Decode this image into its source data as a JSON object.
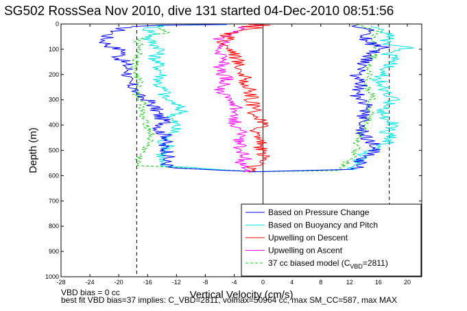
{
  "chart_data": {
    "type": "line",
    "title": "SG502 RossSea Nov 2010, dive 131 started 04-Dec-2010 08:51:56",
    "xlabel": "Vertical Velocity (cm/s)",
    "ylabel": "Depth (m)",
    "xlim": [
      -28,
      22
    ],
    "ylim": [
      0,
      1000
    ],
    "y_reversed": true,
    "x_ticks": [
      -28,
      -24,
      -20,
      -16,
      -12,
      -8,
      -4,
      0,
      4,
      8,
      12,
      16,
      20
    ],
    "y_ticks": [
      0,
      100,
      200,
      300,
      400,
      500,
      600,
      700,
      800,
      900,
      1000
    ],
    "x_tick_labels": [
      "-28",
      "-24",
      "-20",
      "-16",
      "-12",
      "-8",
      "-4",
      "0",
      "4",
      "8",
      "12",
      "16",
      "20"
    ],
    "y_tick_labels": [
      "0",
      "100",
      "200",
      "300",
      "400",
      "500",
      "600",
      "700",
      "800",
      "900",
      "1000"
    ],
    "grid": false,
    "legend_position": "bottom-right",
    "reference_lines": {
      "zero_line": 0,
      "model_bounds": [
        -17.5,
        17.5
      ]
    },
    "series": [
      {
        "name": "Based on Pressure Change",
        "color": "#0000ff",
        "style": "solid",
        "descent": [
          [
            -5,
            2
          ],
          [
            -14,
            5
          ],
          [
            -19,
            10
          ],
          [
            -20,
            25
          ],
          [
            -21.5,
            45
          ],
          [
            -22,
            70
          ],
          [
            -21,
            90
          ],
          [
            -19,
            110
          ],
          [
            -20,
            130
          ],
          [
            -19,
            160
          ],
          [
            -18.5,
            190
          ],
          [
            -19,
            220
          ],
          [
            -18,
            250
          ],
          [
            -17.5,
            270
          ],
          [
            -17.6,
            280
          ],
          [
            -16,
            300
          ],
          [
            -15,
            330
          ],
          [
            -14.5,
            360
          ],
          [
            -13.5,
            390
          ],
          [
            -14.5,
            420
          ],
          [
            -13,
            450
          ],
          [
            -14,
            480
          ],
          [
            -13,
            510
          ],
          [
            -13.5,
            540
          ],
          [
            -13,
            570
          ],
          [
            -2,
            583
          ]
        ],
        "ascent": [
          [
            -2,
            585
          ],
          [
            13,
            575
          ],
          [
            13.5,
            540
          ],
          [
            16,
            490
          ],
          [
            15,
            470
          ],
          [
            14,
            440
          ],
          [
            13.5,
            400
          ],
          [
            14,
            360
          ],
          [
            14.5,
            320
          ],
          [
            13,
            280
          ],
          [
            13.5,
            240
          ],
          [
            13,
            200
          ],
          [
            14,
            160
          ],
          [
            15,
            120
          ],
          [
            16,
            100
          ],
          [
            17.5,
            95
          ],
          [
            15,
            80
          ],
          [
            14,
            50
          ],
          [
            14.5,
            20
          ],
          [
            13,
            5
          ]
        ]
      },
      {
        "name": "Based on Buoyancy and Pitch",
        "color": "#00e5e5",
        "style": "solid",
        "descent": [
          [
            -5,
            2
          ],
          [
            -14,
            5
          ],
          [
            -16,
            20
          ],
          [
            -15,
            40
          ],
          [
            -16,
            60
          ],
          [
            -15,
            80
          ],
          [
            -14,
            100
          ],
          [
            -15,
            130
          ],
          [
            -14.5,
            160
          ],
          [
            -14,
            200
          ],
          [
            -14.5,
            240
          ],
          [
            -13.5,
            270
          ],
          [
            -14,
            290
          ],
          [
            -13,
            300
          ],
          [
            -12,
            320
          ],
          [
            -11,
            350
          ],
          [
            -13,
            370
          ],
          [
            -12,
            400
          ],
          [
            -12.5,
            430
          ],
          [
            -14,
            460
          ],
          [
            -13,
            490
          ],
          [
            -14,
            520
          ],
          [
            -14.5,
            560
          ],
          [
            -2,
            583
          ]
        ],
        "ascent": [
          [
            -2,
            585
          ],
          [
            12.5,
            575
          ],
          [
            13,
            550
          ],
          [
            14.5,
            500
          ],
          [
            16,
            480
          ],
          [
            18,
            460
          ],
          [
            17,
            430
          ],
          [
            18,
            400
          ],
          [
            16.5,
            360
          ],
          [
            17,
            330
          ],
          [
            18,
            300
          ],
          [
            17,
            260
          ],
          [
            16,
            220
          ],
          [
            17,
            180
          ],
          [
            18,
            150
          ],
          [
            17.5,
            120
          ],
          [
            20,
            95
          ],
          [
            17,
            80
          ],
          [
            17.5,
            50
          ],
          [
            16,
            20
          ],
          [
            15,
            5
          ]
        ]
      },
      {
        "name": "Upwelling on Descent",
        "color": "#ff0000",
        "style": "solid",
        "points": [
          [
            -2,
            2
          ],
          [
            1,
            5
          ],
          [
            -3,
            10
          ],
          [
            0,
            15
          ],
          [
            -2,
            20
          ],
          [
            -4,
            30
          ],
          [
            -5,
            45
          ],
          [
            -4,
            60
          ],
          [
            -6,
            70
          ],
          [
            -5,
            90
          ],
          [
            -4,
            110
          ],
          [
            -3,
            180
          ],
          [
            -2,
            260
          ],
          [
            -1.5,
            320
          ],
          [
            -1,
            360
          ],
          [
            0,
            400
          ],
          [
            -1,
            430
          ],
          [
            0,
            470
          ],
          [
            -0.5,
            500
          ],
          [
            0.5,
            530
          ],
          [
            -1,
            560
          ],
          [
            -2,
            585
          ]
        ]
      },
      {
        "name": "Upwelling on Ascent",
        "color": "#ff00ff",
        "style": "solid",
        "points": [
          [
            -2,
            585
          ],
          [
            -3,
            560
          ],
          [
            -2.5,
            530
          ],
          [
            -3,
            500
          ],
          [
            -3.5,
            470
          ],
          [
            -3,
            440
          ],
          [
            -4,
            400
          ],
          [
            -3.5,
            360
          ],
          [
            -4,
            320
          ],
          [
            -5,
            290
          ],
          [
            -6,
            260
          ],
          [
            -5,
            230
          ],
          [
            -5.5,
            200
          ],
          [
            -6,
            170
          ],
          [
            -5,
            140
          ],
          [
            -6,
            110
          ],
          [
            -5.5,
            80
          ],
          [
            -6,
            55
          ],
          [
            -4,
            30
          ],
          [
            -2,
            10
          ],
          [
            0,
            2
          ]
        ]
      },
      {
        "name": "37 cc biased model (C_VBD=2811)",
        "color": "#00cc00",
        "style": "dashed",
        "descent": [
          [
            -5,
            2
          ],
          [
            -14,
            5
          ],
          [
            -15,
            15
          ],
          [
            -13,
            30
          ],
          [
            -15.5,
            45
          ],
          [
            -17.5,
            60
          ],
          [
            -17.2,
            80
          ],
          [
            -17,
            110
          ],
          [
            -17.5,
            140
          ],
          [
            -17.8,
            180
          ],
          [
            -17.2,
            230
          ],
          [
            -17.5,
            280
          ],
          [
            -16.5,
            320
          ],
          [
            -17,
            360
          ],
          [
            -16,
            400
          ],
          [
            -15.5,
            440
          ],
          [
            -16,
            480
          ],
          [
            -17,
            520
          ],
          [
            -17.5,
            560
          ],
          [
            -2,
            583
          ]
        ],
        "ascent": [
          [
            -2,
            585
          ],
          [
            10.5,
            580
          ],
          [
            11.5,
            550
          ],
          [
            12.5,
            520
          ],
          [
            13,
            480
          ],
          [
            13.5,
            440
          ],
          [
            14,
            400
          ],
          [
            15,
            360
          ],
          [
            14.5,
            320
          ],
          [
            15.5,
            280
          ],
          [
            14,
            240
          ],
          [
            15,
            200
          ],
          [
            14.5,
            160
          ],
          [
            15.5,
            120
          ],
          [
            16,
            100
          ],
          [
            15,
            60
          ],
          [
            16,
            30
          ],
          [
            14,
            10
          ],
          [
            13,
            2
          ]
        ]
      }
    ]
  },
  "legend": {
    "items": [
      {
        "label": "Based on Pressure Change",
        "color": "#0000ff",
        "style": "solid"
      },
      {
        "label": "Based on Buoyancy and Pitch",
        "color": "#00e5e5",
        "style": "solid"
      },
      {
        "label": "Upwelling on Descent",
        "color": "#ff0000",
        "style": "solid"
      },
      {
        "label": "Upwelling on Ascent",
        "color": "#ff00ff",
        "style": "solid"
      },
      {
        "label_prefix": "37 cc biased model (C",
        "label_sub": "VBD",
        "label_suffix": "=2811)",
        "color": "#00cc00",
        "style": "dashed"
      }
    ]
  },
  "footer": {
    "line1": "VBD bias = 0 cc",
    "line2": "best fit VBD bias=37 implies: C_VBD=2811, volmax=50964 cc, max SM_CC=587, max MAX"
  }
}
